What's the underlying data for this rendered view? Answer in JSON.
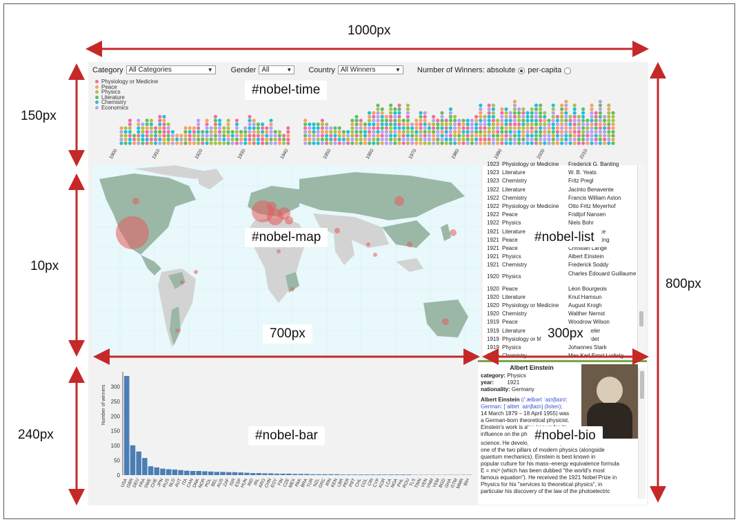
{
  "annotations": {
    "width_total": "1000px",
    "height_time": "150px",
    "height_map": "10px",
    "height_bar": "240px",
    "width_map": "700px",
    "width_list": "300px",
    "height_total": "800px"
  },
  "ids": {
    "time": "#nobel-time",
    "map": "#nobel-map",
    "list": "#nobel-list",
    "bar": "#nobel-bar",
    "bio": "#nobel-bio"
  },
  "controls": {
    "category_label": "Category",
    "category_value": "All Categories",
    "gender_label": "Gender",
    "gender_value": "All",
    "country_label": "Country",
    "country_value": "All Winners",
    "winners_label": "Number of Winners: absolute",
    "percapita_label": "per-capita"
  },
  "legend": [
    {
      "label": "Physiology or Medicine",
      "color": "#f06e9c"
    },
    {
      "label": "Peace",
      "color": "#f4a460"
    },
    {
      "label": "Physics",
      "color": "#a6c34a"
    },
    {
      "label": "Literature",
      "color": "#5fbf5f"
    },
    {
      "label": "Chemistry",
      "color": "#21c0d8"
    },
    {
      "label": "Economics",
      "color": "#b9a0f2"
    }
  ],
  "timeline": {
    "ticks": [
      "1900",
      "1910",
      "1920",
      "1930",
      "1940",
      "1950",
      "1960",
      "1970",
      "1980",
      "1990",
      "2000",
      "2010"
    ]
  },
  "list_rows": [
    {
      "year": "1923",
      "cat": "Physiology or Medicine",
      "name": "Frederick G. Banting"
    },
    {
      "year": "1923",
      "cat": "Literature",
      "name": "W. B. Yeats"
    },
    {
      "year": "1923",
      "cat": "Chemistry",
      "name": "Fritz Pregl"
    },
    {
      "year": "1922",
      "cat": "Literature",
      "name": "Jacinto Benavente"
    },
    {
      "year": "1922",
      "cat": "Chemistry",
      "name": "Francis William Aston"
    },
    {
      "year": "1922",
      "cat": "Physiology or Medicine",
      "name": "Otto Fritz Meyerhof"
    },
    {
      "year": "1922",
      "cat": "Peace",
      "name": "Fridtjof Nansen"
    },
    {
      "year": "1922",
      "cat": "Physics",
      "name": "Niels Bohr"
    },
    {
      "year": "1921",
      "cat": "Literature",
      "name": "Anatole France"
    },
    {
      "year": "1921",
      "cat": "Peace",
      "name": "Hjalmar Branting"
    },
    {
      "year": "1921",
      "cat": "Peace",
      "name": "Christian Lange"
    },
    {
      "year": "1921",
      "cat": "Physics",
      "name": "Albert Einstein"
    },
    {
      "year": "1921",
      "cat": "Chemistry",
      "name": "Frederick Soddy"
    },
    {
      "year": "1920",
      "cat": "Physics",
      "name": "Charles Édouard Guillaume"
    },
    {
      "year": "1920",
      "cat": "Peace",
      "name": "Léon Bourgeois"
    },
    {
      "year": "1920",
      "cat": "Literature",
      "name": "Knut Hamsun"
    },
    {
      "year": "1920",
      "cat": "Physiology or Medicine",
      "name": "August Krogh"
    },
    {
      "year": "1920",
      "cat": "Chemistry",
      "name": "Walther Nernst"
    },
    {
      "year": "1919",
      "cat": "Peace",
      "name": "Woodrow Wilson"
    },
    {
      "year": "1919",
      "cat": "Literature",
      "name": "Carl Spitteler"
    },
    {
      "year": "1919",
      "cat": "Physiology or Medicine",
      "name": "Jules Bordet"
    },
    {
      "year": "1919",
      "cat": "Physics",
      "name": "Johannes Stark"
    },
    {
      "year": "1919",
      "cat": "Chemistry",
      "name": "Max Karl Ernst Ludwig"
    }
  ],
  "bio": {
    "title": "Albert Einstein",
    "category_key": "category:",
    "category_val": "Physics",
    "year_key": "year:",
    "year_val": "1921",
    "nat_key": "nationality:",
    "nat_val": "Germany",
    "name_bold": "Albert Einstein",
    "line1": "(/ˈælbərt ˈaɪnʃtaɪn/;",
    "line2": "German: [ˈalbɐt ˈaɪnʃtaɪn] (listen);",
    "line3": "14 March 1879 – 18 April 1955) was",
    "line4": "a German-born theoretical physicist.",
    "line5": "Einstein's work is also known for its",
    "line6": "influence on the philosophy of",
    "line7": "science. He developed the theory of relativity,",
    "line8": "one of the two pillars of modern physics (alongside",
    "line9": "quantum mechanics). Einstein is best known in",
    "line10": "popular culture for his mass–energy equivalence formula",
    "line11": "E = mc² (which has been dubbed \"the world's most",
    "line12": "famous equation\"). He received the 1921 Nobel Prize in",
    "line13": "Physics for his \"services to theoretical physics\", in",
    "line14": "particular his discovery of the law of the photoelectric"
  },
  "chart_data": {
    "type": "bar",
    "ylabel": "Number of winners",
    "ylim": [
      0,
      350
    ],
    "yticks": [
      0,
      50,
      100,
      150,
      200,
      250,
      300
    ],
    "categories": [
      "USA",
      "GBR",
      "DEU",
      "FRA",
      "SWE",
      "CHE",
      "JPN",
      "RUS",
      "NLD",
      "AUT",
      "ITA",
      "CAN",
      "DNK",
      "NOR",
      "POL",
      "BEL",
      "AUS",
      "ZAF",
      "ISR",
      "ESP",
      "HUN",
      "IND",
      "IRL",
      "ARG",
      "CHN",
      "EGY",
      "FIN",
      "CZE",
      "MEX",
      "PAK",
      "BRA",
      "TUR",
      "NZL",
      "GRC",
      "IRN",
      "KEN",
      "LBR",
      "PER",
      "PRT",
      "CHL",
      "COL",
      "CRI",
      "CYP",
      "KOR",
      "LCA",
      "NGA",
      "PHL",
      "ROU",
      "TLS",
      "TWN",
      "VEN",
      "VNM",
      "YEM",
      "BGD",
      "GHA",
      "GTM",
      "MMR",
      "BIH"
    ],
    "values": [
      336,
      101,
      80,
      58,
      30,
      26,
      22,
      20,
      19,
      17,
      15,
      14,
      14,
      13,
      12,
      11,
      11,
      10,
      10,
      9,
      8,
      7,
      7,
      6,
      6,
      5,
      5,
      5,
      4,
      4,
      4,
      3,
      3,
      3,
      3,
      3,
      2,
      2,
      2,
      2,
      2,
      2,
      2,
      2,
      2,
      2,
      2,
      2,
      1,
      1,
      1,
      1,
      1,
      1,
      1,
      1,
      1,
      1
    ]
  }
}
